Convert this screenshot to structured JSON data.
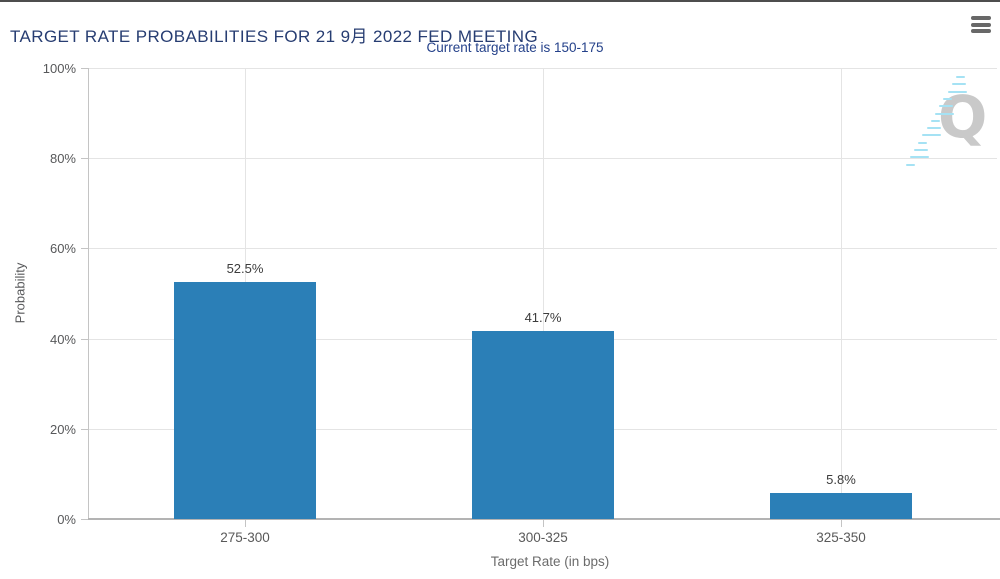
{
  "header": {
    "title": "TARGET RATE PROBABILITIES FOR 21 9月 2022 FED MEETING",
    "subtitle": "Current target rate is 150-175"
  },
  "menu": {
    "icon": "hamburger-icon"
  },
  "watermark": {
    "letter": "Q"
  },
  "colors": {
    "bar": "#2b7fb7",
    "title": "#273d72",
    "subtitle": "#24418a",
    "grid": "#e4e4e4",
    "axis": "#b3b3b3"
  },
  "chart_data": {
    "type": "bar",
    "title": "TARGET RATE PROBABILITIES FOR 21 9月 2022 FED MEETING",
    "subtitle": "Current target rate is 150-175",
    "categories": [
      "275-300",
      "300-325",
      "325-350"
    ],
    "values": [
      52.5,
      41.7,
      5.8
    ],
    "value_labels": [
      "52.5%",
      "41.7%",
      "5.8%"
    ],
    "xlabel": "Target Rate (in bps)",
    "ylabel": "Probability",
    "ylim": [
      0,
      100
    ],
    "ytick_labels": [
      "0%",
      "20%",
      "40%",
      "60%",
      "80%",
      "100%"
    ],
    "grid": true,
    "legend": false,
    "bar_color": "#2b7fb7"
  }
}
